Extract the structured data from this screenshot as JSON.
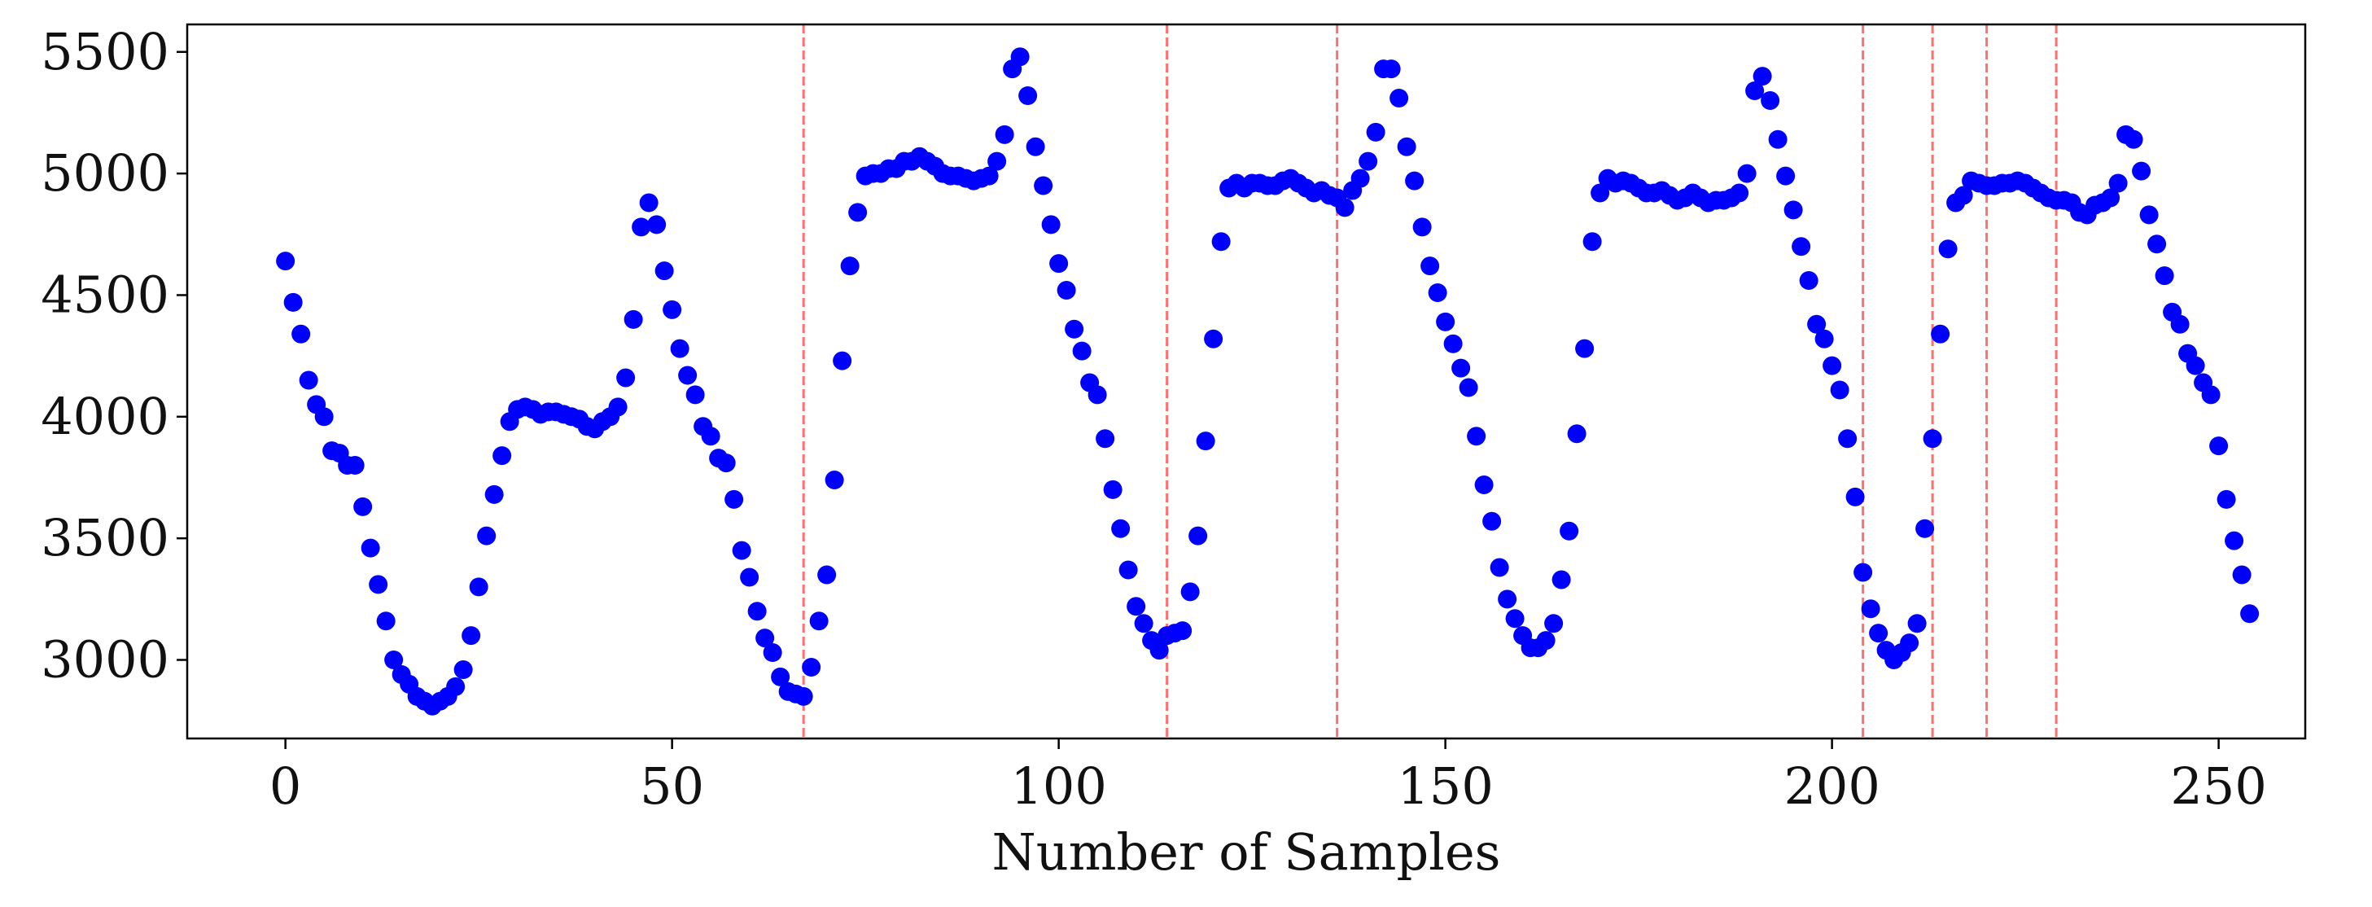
{
  "chart_data": {
    "type": "scatter",
    "xlabel": "Number of Samples",
    "x": [
      0,
      1,
      2,
      3,
      4,
      5,
      6,
      7,
      8,
      9,
      10,
      11,
      12,
      13,
      14,
      15,
      16,
      17,
      18,
      19,
      20,
      21,
      22,
      23,
      24,
      25,
      26,
      27,
      28,
      29,
      30,
      31,
      32,
      33,
      34,
      35,
      36,
      37,
      38,
      39,
      40,
      41,
      42,
      43,
      44,
      45,
      46,
      47,
      48,
      49,
      50,
      51,
      52,
      53,
      54,
      55,
      56,
      57,
      58,
      59,
      60,
      61,
      62,
      63,
      64,
      65,
      66,
      67,
      68,
      69,
      70,
      71,
      72,
      73,
      74,
      75,
      76,
      77,
      78,
      79,
      80,
      81,
      82,
      83,
      84,
      85,
      86,
      87,
      88,
      89,
      90,
      91,
      92,
      93,
      94,
      95,
      96,
      97,
      98,
      99,
      100,
      101,
      102,
      103,
      104,
      105,
      106,
      107,
      108,
      109,
      110,
      111,
      112,
      113,
      114,
      115,
      116,
      117,
      118,
      119,
      120,
      121,
      122,
      123,
      124,
      125,
      126,
      127,
      128,
      129,
      130,
      131,
      132,
      133,
      134,
      135,
      136,
      137,
      138,
      139,
      140,
      141,
      142,
      143,
      144,
      145,
      146,
      147,
      148,
      149,
      150,
      151,
      152,
      153,
      154,
      155,
      156,
      157,
      158,
      159,
      160,
      161,
      162,
      163,
      164,
      165,
      166,
      167,
      168,
      169,
      170,
      171,
      172,
      173,
      174,
      175,
      176,
      177,
      178,
      179,
      180,
      181,
      182,
      183,
      184,
      185,
      186,
      187,
      188,
      189,
      190,
      191,
      192,
      193,
      194,
      195,
      196,
      197,
      198,
      199,
      200,
      201,
      202,
      203,
      204,
      205,
      206,
      207,
      208,
      209,
      210,
      211,
      212,
      213,
      214,
      215,
      216,
      217,
      218,
      219,
      220,
      221,
      222,
      223,
      224,
      225,
      226,
      227,
      228,
      229,
      230,
      231,
      232,
      233,
      234,
      235,
      236,
      237,
      238,
      239,
      240,
      241,
      242,
      243,
      244,
      245,
      246,
      247,
      248,
      249,
      250,
      251,
      252,
      253,
      254
    ],
    "values": [
      4640,
      4470,
      4340,
      4150,
      4050,
      4000,
      3860,
      3850,
      3800,
      3800,
      3630,
      3460,
      3310,
      3160,
      3000,
      2940,
      2900,
      2850,
      2830,
      2810,
      2830,
      2850,
      2890,
      2960,
      3100,
      3300,
      3510,
      3680,
      3840,
      3980,
      4030,
      4040,
      4030,
      4010,
      4020,
      4020,
      4010,
      4000,
      3990,
      3960,
      3950,
      3980,
      4000,
      4040,
      4160,
      4400,
      4780,
      4880,
      4790,
      4600,
      4440,
      4280,
      4170,
      4090,
      3960,
      3920,
      3830,
      3810,
      3660,
      3450,
      3340,
      3200,
      3090,
      3030,
      2930,
      2870,
      2860,
      2850,
      2970,
      3160,
      3350,
      3740,
      4230,
      4620,
      4840,
      4990,
      5000,
      5000,
      5020,
      5020,
      5050,
      5050,
      5070,
      5050,
      5030,
      5000,
      4990,
      4990,
      4980,
      4970,
      4980,
      4990,
      5050,
      5160,
      5430,
      5480,
      5320,
      5110,
      4950,
      4790,
      4630,
      4520,
      4360,
      4270,
      4140,
      4090,
      3910,
      3700,
      3540,
      3370,
      3220,
      3150,
      3080,
      3040,
      3100,
      3110,
      3120,
      3280,
      3510,
      3900,
      4320,
      4720,
      4940,
      4960,
      4940,
      4960,
      4960,
      4950,
      4950,
      4970,
      4980,
      4960,
      4940,
      4920,
      4930,
      4910,
      4900,
      4860,
      4930,
      4980,
      5050,
      5170,
      5430,
      5430,
      5310,
      5110,
      4970,
      4780,
      4620,
      4510,
      4390,
      4300,
      4200,
      4120,
      3920,
      3720,
      3570,
      3380,
      3250,
      3170,
      3100,
      3050,
      3050,
      3080,
      3150,
      3330,
      3530,
      3930,
      4280,
      4720,
      4920,
      4980,
      4960,
      4970,
      4960,
      4940,
      4920,
      4920,
      4930,
      4910,
      4890,
      4900,
      4920,
      4900,
      4880,
      4890,
      4890,
      4900,
      4920,
      5000,
      5340,
      5400,
      5300,
      5140,
      4990,
      4850,
      4700,
      4560,
      4380,
      4320,
      4210,
      4110,
      3910,
      3670,
      3360,
      3210,
      3110,
      3040,
      3000,
      3030,
      3070,
      3150,
      3540,
      3910,
      4340,
      4690,
      4880,
      4910,
      4970,
      4960,
      4950,
      4950,
      4960,
      4960,
      4970,
      4960,
      4940,
      4920,
      4900,
      4890,
      4890,
      4880,
      4840,
      4830,
      4870,
      4880,
      4900,
      4960,
      5160,
      5140,
      5010,
      4830,
      4710,
      4580,
      4430,
      4380,
      4260,
      4210,
      4140,
      4090,
      3880,
      3660,
      3490,
      3350,
      3190
    ],
    "color": "#0000ff",
    "vlines": [
      67,
      114,
      136,
      204,
      213,
      220,
      229
    ],
    "vline_color": "#ff7070",
    "xlim": [
      -12.7,
      261.2
    ],
    "ylim": [
      2677,
      5613
    ],
    "xticks": [
      0,
      50,
      100,
      150,
      200,
      250
    ],
    "yticks": [
      3000,
      3500,
      4000,
      4500,
      5000,
      5500
    ]
  }
}
